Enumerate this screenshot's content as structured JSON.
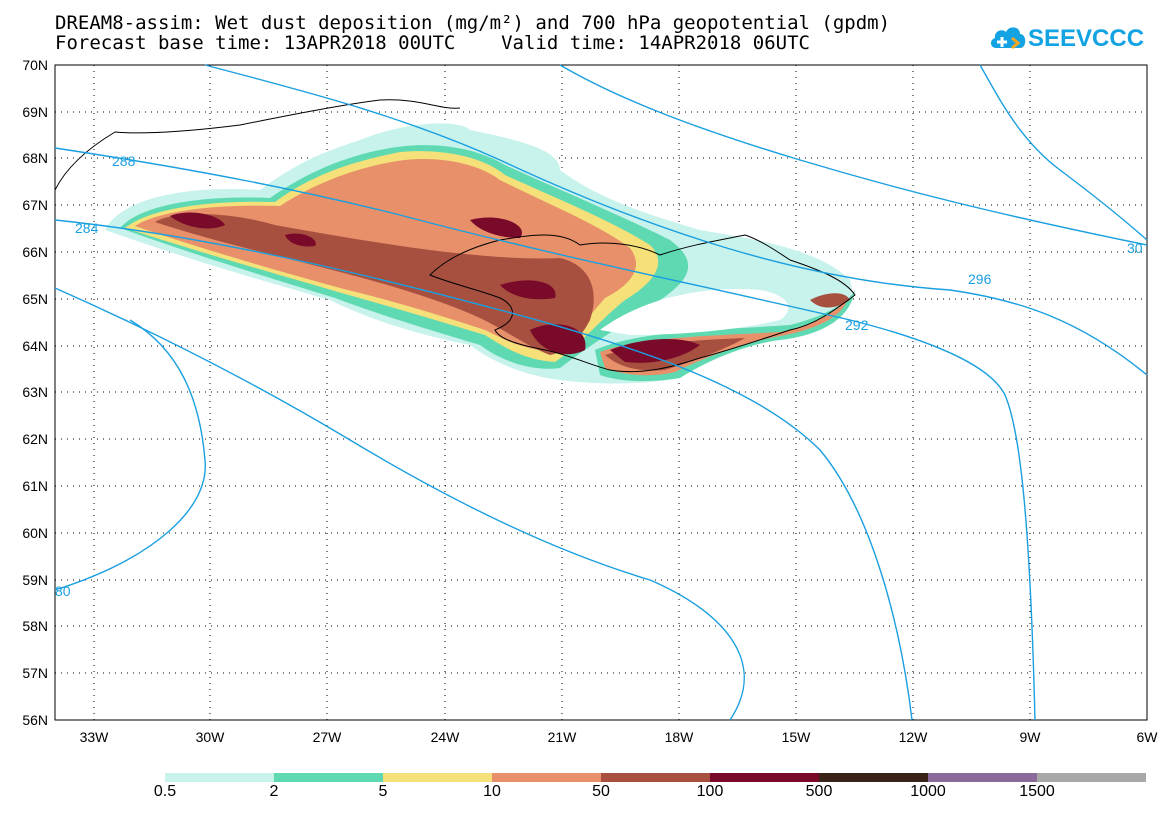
{
  "title": {
    "line1": "DREAM8-assim: Wet dust deposition (mg/m²) and 700 hPa geopotential (gpdm)",
    "line2": "Forecast base time: 13APR2018 00UTC    Valid time: 14APR2018 06UTC"
  },
  "logo": {
    "text": "SEEVCCC",
    "color": "#13a3e3",
    "icon": "cloud-logo-icon"
  },
  "map": {
    "lat_labels": [
      "70N",
      "69N",
      "68N",
      "67N",
      "66N",
      "65N",
      "64N",
      "63N",
      "62N",
      "61N",
      "60N",
      "59N",
      "58N",
      "57N",
      "56N"
    ],
    "lon_labels": [
      "33W",
      "30W",
      "27W",
      "24W",
      "21W",
      "18W",
      "15W",
      "12W",
      "9W",
      "6W"
    ],
    "lat_range": [
      56,
      70
    ],
    "lon_range": [
      -34.5,
      -6
    ],
    "contour_color": "#1a9fe0",
    "contour_labels": [
      "288",
      "284",
      "296",
      "292",
      "30",
      "80"
    ],
    "grid": "dotted"
  },
  "colorbar": {
    "labels": [
      "0.5",
      "2",
      "5",
      "10",
      "50",
      "100",
      "500",
      "1000",
      "1500"
    ],
    "colors": [
      "#c8f2ec",
      "#5ed9b2",
      "#f5e07a",
      "#e8906a",
      "#a85040",
      "#7a0a2a",
      "#3a2418",
      "#8a6a9a",
      "#a8a8a8"
    ]
  }
}
